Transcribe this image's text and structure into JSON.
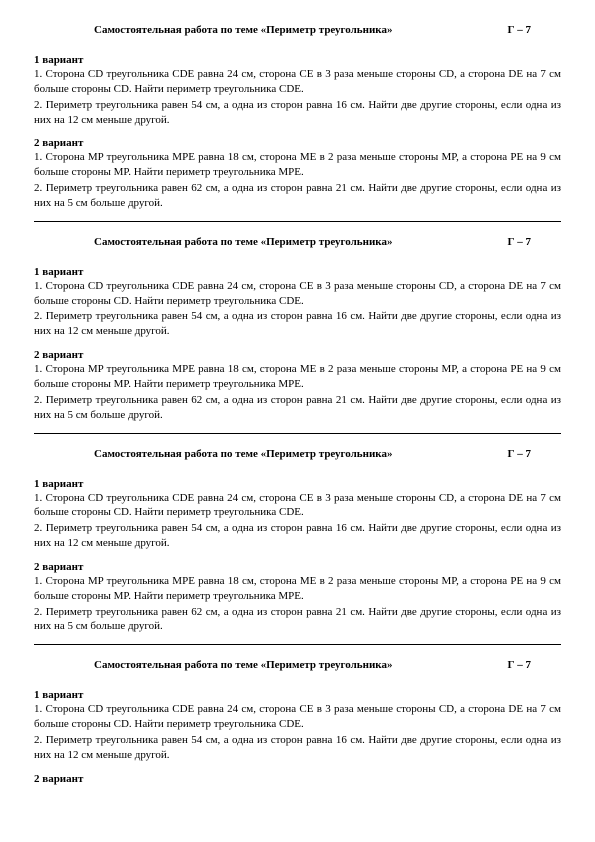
{
  "title": "Самостоятельная работа по теме «Периметр треугольника»",
  "grade": "Г – 7",
  "v1_label": "1 вариант",
  "v1_task1": "1. Сторона CD треугольника CDE равна 24 см, сторона CE в 3 раза меньше стороны  CD, а сторона DE на 7 см больше стороны CD. Найти периметр треугольника  CDE.",
  "v1_task2": "2. Периметр треугольника равен 54 см, а одна из сторон равна 16 см. Найти две другие стороны, если одна из них на 12 см меньше другой.",
  "v2_label": "2 вариант",
  "v2_task1": "1. Сторона MP треугольника MPE равна 18 см, сторона ME в 2 раза меньше стороны  MP, а сторона PE на 9 см больше стороны MP. Найти периметр треугольника  MPE.",
  "v2_task2": "2. Периметр треугольника равен 62 см, а одна из сторон равна 21 см. Найти две другие стороны, если одна из них на 5 см больше другой."
}
